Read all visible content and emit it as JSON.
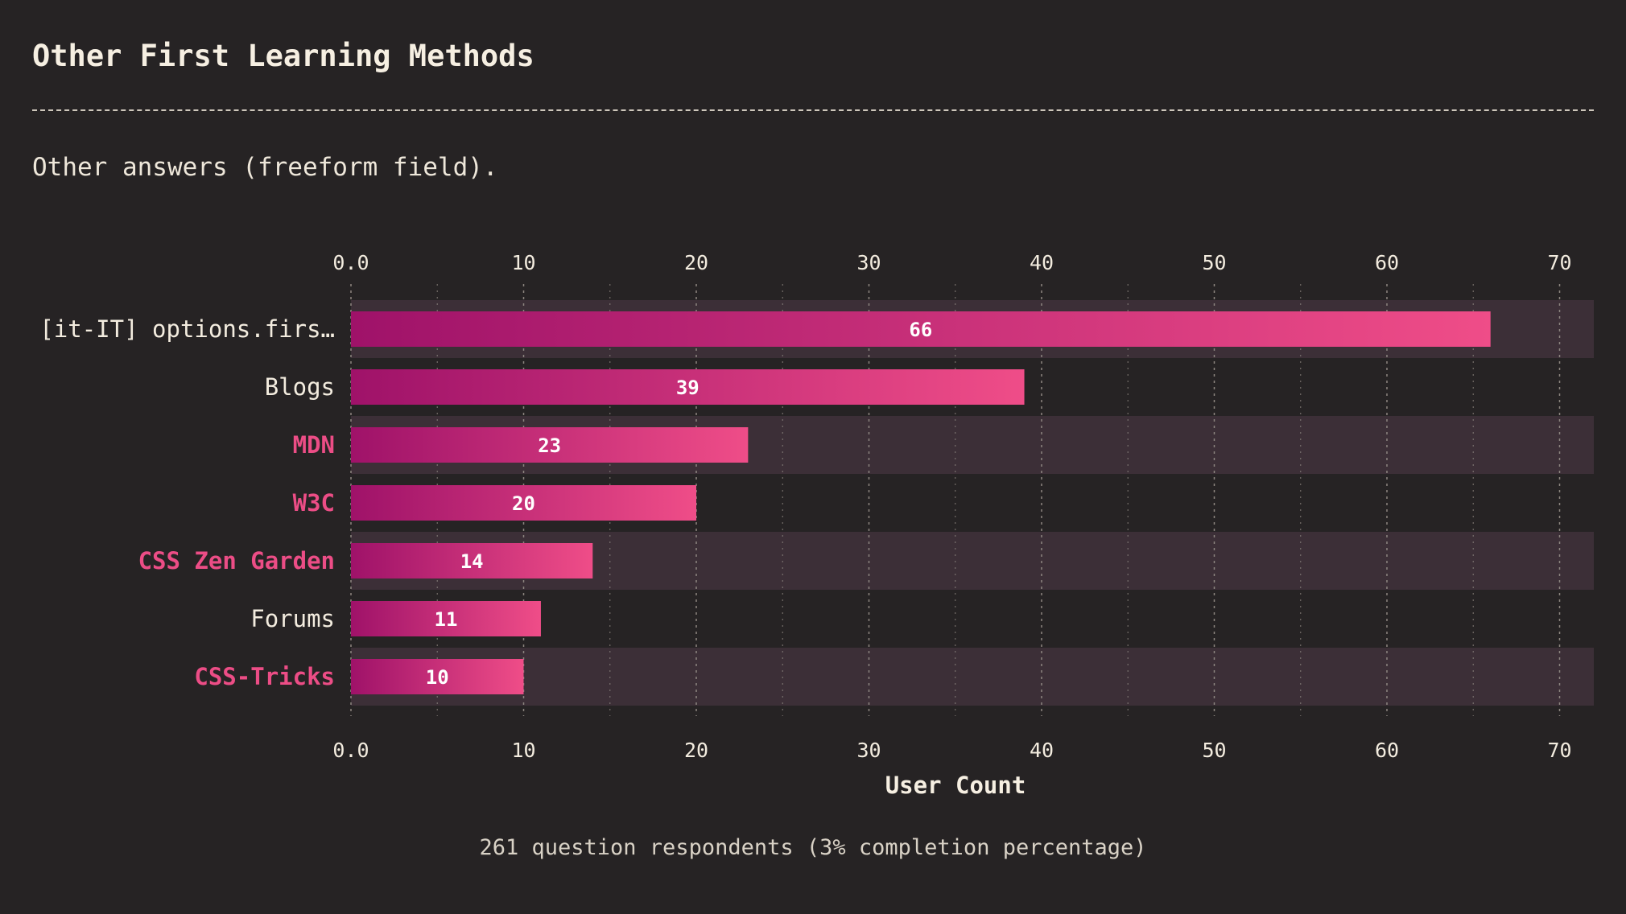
{
  "page": {
    "title": "Other First Learning Methods",
    "subtitle": "Other answers (freeform field).",
    "footer": "261 question respondents (3% completion percentage)"
  },
  "colors": {
    "background": "#262324",
    "band": "#3c2f37",
    "bar_start": "#9f1269",
    "bar_end": "#ef4d88",
    "text": "#f3ecdf",
    "highlight": "#ec4d86",
    "grid": "#8d8680"
  },
  "chart_data": {
    "type": "bar",
    "orientation": "horizontal",
    "categories": [
      "[it-IT] options.firs…",
      "Blogs",
      "MDN",
      "W3C",
      "CSS Zen Garden",
      "Forums",
      "CSS-Tricks"
    ],
    "values": [
      66,
      39,
      23,
      20,
      14,
      11,
      10
    ],
    "highlighted": [
      false,
      false,
      true,
      true,
      true,
      false,
      true
    ],
    "xlabel": "User Count",
    "ylabel": "",
    "xlim": [
      0,
      72
    ],
    "ticks": [
      0,
      10,
      20,
      30,
      40,
      50,
      60,
      70
    ],
    "tick_labels": [
      "0.0",
      "10",
      "20",
      "30",
      "40",
      "50",
      "60",
      "70"
    ],
    "minor_ticks": [
      5,
      15,
      25,
      35,
      45,
      55,
      65
    ],
    "grid": true
  }
}
